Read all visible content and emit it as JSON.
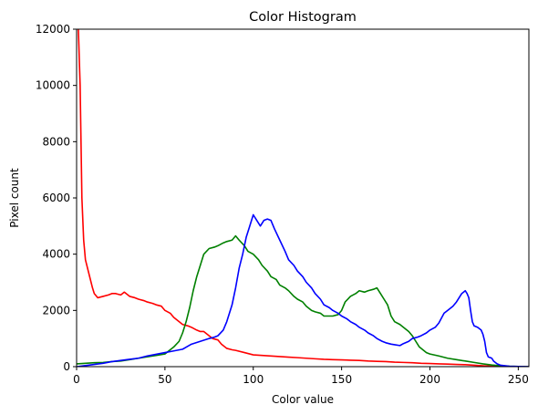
{
  "chart_data": {
    "type": "line",
    "title": "Color Histogram",
    "xlabel": "Color value",
    "ylabel": "Pixel count",
    "xlim": [
      0,
      256
    ],
    "ylim": [
      0,
      12000
    ],
    "xticks": [
      0,
      50,
      100,
      150,
      200,
      250
    ],
    "yticks": [
      0,
      2000,
      4000,
      6000,
      8000,
      10000,
      12000
    ],
    "grid": false,
    "legend": "none",
    "series": [
      {
        "color": "#ff0000",
        "points": [
          [
            1,
            12000
          ],
          [
            2,
            10000
          ],
          [
            3,
            6000
          ],
          [
            4,
            4500
          ],
          [
            5,
            3800
          ],
          [
            7,
            3300
          ],
          [
            9,
            2800
          ],
          [
            10,
            2600
          ],
          [
            12,
            2450
          ],
          [
            15,
            2500
          ],
          [
            18,
            2550
          ],
          [
            20,
            2600
          ],
          [
            22,
            2600
          ],
          [
            25,
            2550
          ],
          [
            27,
            2650
          ],
          [
            30,
            2500
          ],
          [
            33,
            2450
          ],
          [
            35,
            2400
          ],
          [
            38,
            2350
          ],
          [
            40,
            2300
          ],
          [
            43,
            2250
          ],
          [
            45,
            2200
          ],
          [
            48,
            2150
          ],
          [
            50,
            2000
          ],
          [
            53,
            1900
          ],
          [
            55,
            1750
          ],
          [
            58,
            1600
          ],
          [
            60,
            1500
          ],
          [
            63,
            1450
          ],
          [
            65,
            1400
          ],
          [
            68,
            1300
          ],
          [
            70,
            1250
          ],
          [
            72,
            1250
          ],
          [
            75,
            1100
          ],
          [
            77,
            1000
          ],
          [
            80,
            950
          ],
          [
            82,
            800
          ],
          [
            85,
            650
          ],
          [
            88,
            600
          ],
          [
            90,
            580
          ],
          [
            95,
            500
          ],
          [
            100,
            420
          ],
          [
            105,
            400
          ],
          [
            110,
            380
          ],
          [
            115,
            360
          ],
          [
            120,
            340
          ],
          [
            125,
            320
          ],
          [
            130,
            300
          ],
          [
            135,
            280
          ],
          [
            140,
            260
          ],
          [
            145,
            250
          ],
          [
            150,
            240
          ],
          [
            155,
            230
          ],
          [
            160,
            220
          ],
          [
            165,
            200
          ],
          [
            170,
            190
          ],
          [
            175,
            180
          ],
          [
            180,
            160
          ],
          [
            185,
            150
          ],
          [
            190,
            140
          ],
          [
            195,
            120
          ],
          [
            200,
            110
          ],
          [
            205,
            100
          ],
          [
            210,
            90
          ],
          [
            215,
            80
          ],
          [
            220,
            70
          ],
          [
            225,
            50
          ],
          [
            230,
            30
          ],
          [
            235,
            15
          ],
          [
            240,
            5
          ],
          [
            245,
            3
          ],
          [
            250,
            2
          ],
          [
            256,
            0
          ]
        ]
      },
      {
        "color": "#008000",
        "points": [
          [
            0,
            100
          ],
          [
            5,
            120
          ],
          [
            10,
            140
          ],
          [
            15,
            150
          ],
          [
            20,
            180
          ],
          [
            25,
            200
          ],
          [
            30,
            250
          ],
          [
            35,
            300
          ],
          [
            40,
            350
          ],
          [
            45,
            400
          ],
          [
            50,
            450
          ],
          [
            52,
            550
          ],
          [
            55,
            700
          ],
          [
            58,
            900
          ],
          [
            60,
            1200
          ],
          [
            62,
            1600
          ],
          [
            64,
            2100
          ],
          [
            66,
            2700
          ],
          [
            68,
            3200
          ],
          [
            70,
            3600
          ],
          [
            72,
            4000
          ],
          [
            75,
            4200
          ],
          [
            78,
            4250
          ],
          [
            80,
            4300
          ],
          [
            83,
            4400
          ],
          [
            85,
            4450
          ],
          [
            88,
            4500
          ],
          [
            90,
            4650
          ],
          [
            92,
            4500
          ],
          [
            95,
            4300
          ],
          [
            97,
            4100
          ],
          [
            100,
            4000
          ],
          [
            103,
            3800
          ],
          [
            105,
            3600
          ],
          [
            108,
            3400
          ],
          [
            110,
            3200
          ],
          [
            113,
            3100
          ],
          [
            115,
            2900
          ],
          [
            118,
            2800
          ],
          [
            120,
            2700
          ],
          [
            123,
            2500
          ],
          [
            125,
            2400
          ],
          [
            128,
            2300
          ],
          [
            130,
            2150
          ],
          [
            133,
            2000
          ],
          [
            135,
            1950
          ],
          [
            138,
            1900
          ],
          [
            140,
            1800
          ],
          [
            143,
            1800
          ],
          [
            145,
            1800
          ],
          [
            148,
            1850
          ],
          [
            150,
            2000
          ],
          [
            152,
            2300
          ],
          [
            155,
            2500
          ],
          [
            158,
            2600
          ],
          [
            160,
            2700
          ],
          [
            163,
            2650
          ],
          [
            165,
            2700
          ],
          [
            168,
            2750
          ],
          [
            170,
            2800
          ],
          [
            172,
            2600
          ],
          [
            174,
            2400
          ],
          [
            176,
            2200
          ],
          [
            178,
            1800
          ],
          [
            180,
            1600
          ],
          [
            183,
            1500
          ],
          [
            185,
            1400
          ],
          [
            188,
            1250
          ],
          [
            190,
            1100
          ],
          [
            192,
            900
          ],
          [
            194,
            700
          ],
          [
            196,
            600
          ],
          [
            198,
            500
          ],
          [
            200,
            450
          ],
          [
            205,
            380
          ],
          [
            210,
            300
          ],
          [
            215,
            250
          ],
          [
            220,
            200
          ],
          [
            225,
            150
          ],
          [
            230,
            100
          ],
          [
            235,
            60
          ],
          [
            240,
            30
          ],
          [
            245,
            15
          ],
          [
            250,
            8
          ],
          [
            256,
            0
          ]
        ]
      },
      {
        "color": "#0000ff",
        "points": [
          [
            0,
            0
          ],
          [
            5,
            40
          ],
          [
            10,
            80
          ],
          [
            15,
            120
          ],
          [
            20,
            180
          ],
          [
            25,
            220
          ],
          [
            30,
            260
          ],
          [
            35,
            300
          ],
          [
            40,
            380
          ],
          [
            45,
            440
          ],
          [
            50,
            500
          ],
          [
            55,
            560
          ],
          [
            60,
            620
          ],
          [
            65,
            800
          ],
          [
            70,
            900
          ],
          [
            75,
            1000
          ],
          [
            78,
            1050
          ],
          [
            80,
            1100
          ],
          [
            83,
            1300
          ],
          [
            85,
            1600
          ],
          [
            88,
            2200
          ],
          [
            90,
            2800
          ],
          [
            92,
            3500
          ],
          [
            94,
            4000
          ],
          [
            96,
            4600
          ],
          [
            98,
            5000
          ],
          [
            100,
            5400
          ],
          [
            102,
            5200
          ],
          [
            104,
            5000
          ],
          [
            106,
            5200
          ],
          [
            108,
            5250
          ],
          [
            110,
            5200
          ],
          [
            112,
            4900
          ],
          [
            115,
            4500
          ],
          [
            118,
            4100
          ],
          [
            120,
            3800
          ],
          [
            123,
            3600
          ],
          [
            125,
            3400
          ],
          [
            128,
            3200
          ],
          [
            130,
            3000
          ],
          [
            133,
            2800
          ],
          [
            135,
            2600
          ],
          [
            138,
            2400
          ],
          [
            140,
            2200
          ],
          [
            143,
            2100
          ],
          [
            145,
            2000
          ],
          [
            148,
            1900
          ],
          [
            150,
            1800
          ],
          [
            153,
            1700
          ],
          [
            155,
            1600
          ],
          [
            158,
            1500
          ],
          [
            160,
            1400
          ],
          [
            163,
            1300
          ],
          [
            165,
            1200
          ],
          [
            168,
            1100
          ],
          [
            170,
            1000
          ],
          [
            173,
            900
          ],
          [
            175,
            850
          ],
          [
            178,
            800
          ],
          [
            180,
            780
          ],
          [
            183,
            750
          ],
          [
            185,
            820
          ],
          [
            188,
            900
          ],
          [
            190,
            1000
          ],
          [
            193,
            1050
          ],
          [
            195,
            1100
          ],
          [
            198,
            1200
          ],
          [
            200,
            1300
          ],
          [
            203,
            1400
          ],
          [
            205,
            1550
          ],
          [
            208,
            1900
          ],
          [
            210,
            2000
          ],
          [
            213,
            2150
          ],
          [
            215,
            2300
          ],
          [
            218,
            2600
          ],
          [
            220,
            2700
          ],
          [
            221,
            2600
          ],
          [
            222,
            2450
          ],
          [
            223,
            2000
          ],
          [
            224,
            1600
          ],
          [
            225,
            1450
          ],
          [
            227,
            1400
          ],
          [
            229,
            1300
          ],
          [
            230,
            1150
          ],
          [
            231,
            900
          ],
          [
            232,
            500
          ],
          [
            233,
            350
          ],
          [
            235,
            300
          ],
          [
            236,
            200
          ],
          [
            238,
            100
          ],
          [
            240,
            50
          ],
          [
            245,
            15
          ],
          [
            250,
            5
          ],
          [
            256,
            0
          ]
        ]
      }
    ]
  }
}
